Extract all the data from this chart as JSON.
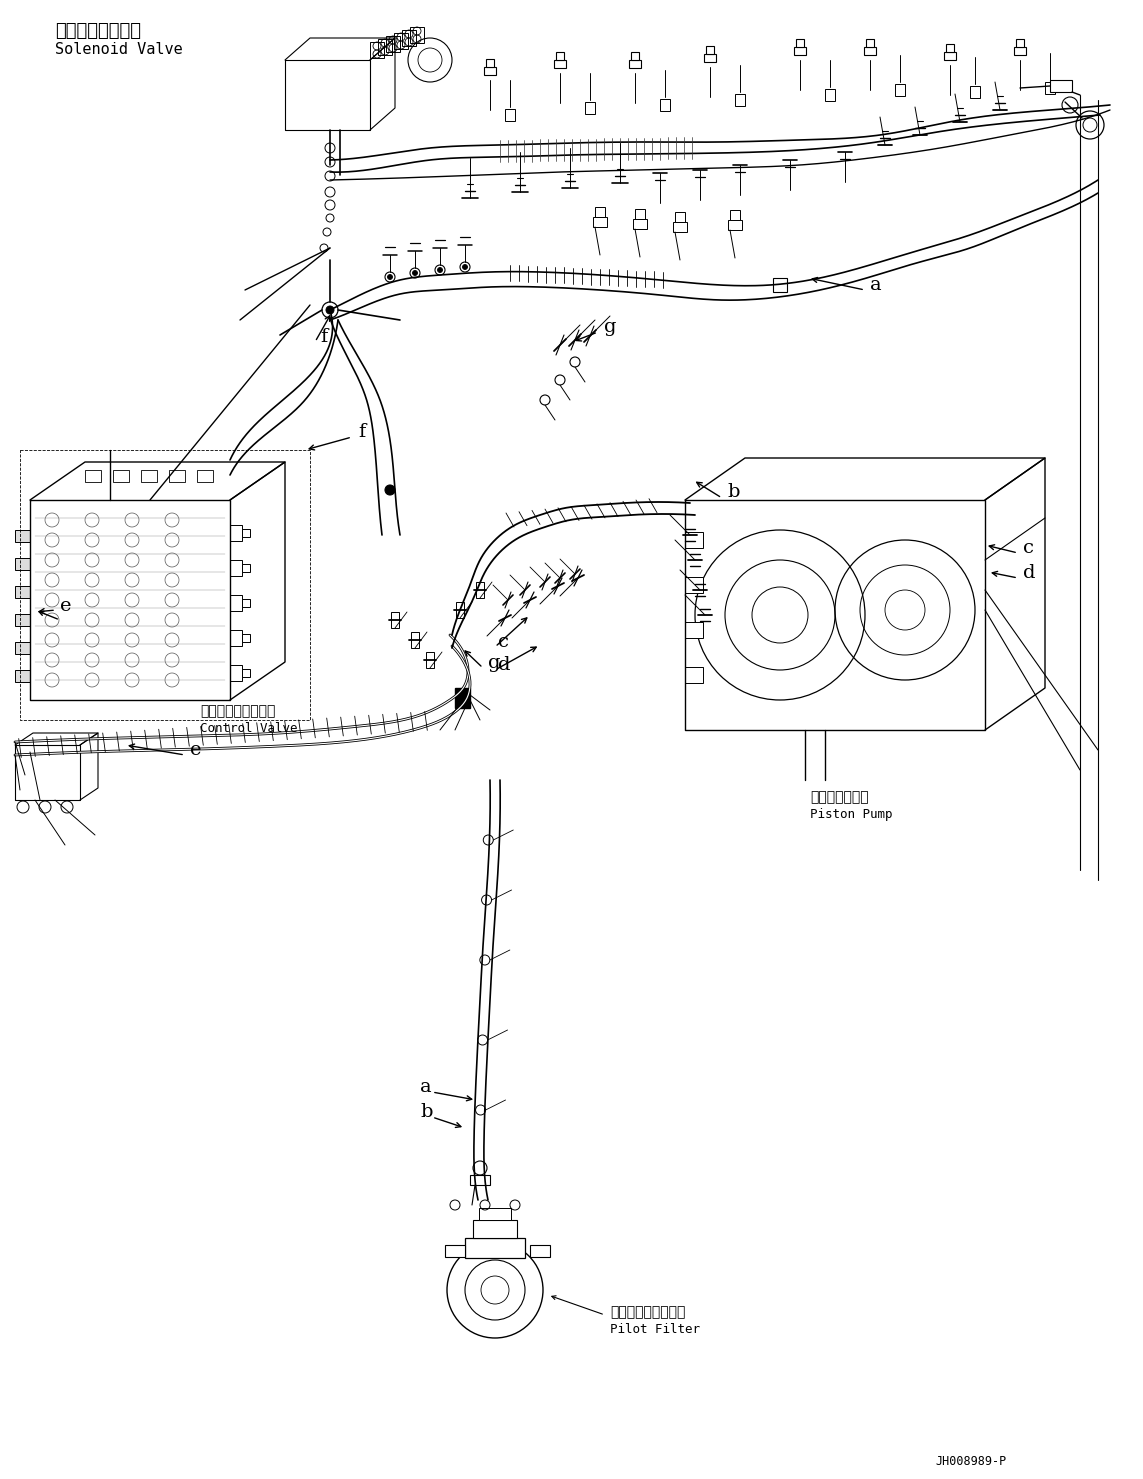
{
  "bg_color": "#ffffff",
  "line_color": "#000000",
  "fig_width": 11.43,
  "fig_height": 14.79,
  "dpi": 100,
  "labels": {
    "solenoid_valve_jp": "ソレノイドバルブ",
    "solenoid_valve_en": "Solenoid Valve",
    "control_valve_jp": "コントロールバルブ",
    "control_valve_en": "Control Valve",
    "piston_pump_jp": "ピストンポンプ",
    "piston_pump_en": "Piston Pump",
    "pilot_filter_jp": "パイロットフィルタ",
    "pilot_filter_en": "Pilot Filter",
    "part_id": "JH008989-P"
  }
}
